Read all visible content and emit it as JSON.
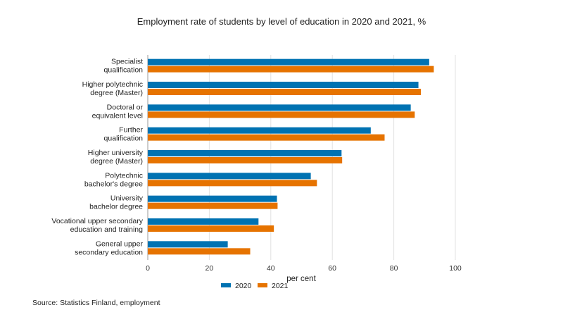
{
  "chart_data": {
    "type": "bar",
    "orientation": "horizontal",
    "title": "Employment rate of students by level of education in 2020 and 2021, %",
    "xlabel": "per cent",
    "ylabel": "",
    "xlim": [
      0,
      100
    ],
    "x_ticks": [
      "0",
      "20",
      "40",
      "60",
      "80",
      "100"
    ],
    "grid": true,
    "legend_position": "bottom",
    "categories": [
      [
        "Specialist",
        "qualification"
      ],
      [
        "Higher polytechnic",
        "degree (Master)"
      ],
      [
        "Doctoral or",
        "equivalent level"
      ],
      [
        "Further",
        "qualification"
      ],
      [
        "Higher university",
        "degree (Master)"
      ],
      [
        "Polytechnic",
        "bachelor's degree"
      ],
      [
        "University",
        "bachelor degree"
      ],
      [
        "Vocational upper secondary",
        "education and training"
      ],
      [
        "General upper",
        "secondary education"
      ]
    ],
    "series": [
      {
        "name": "2020",
        "color": "#0072b2",
        "values": [
          91.5,
          88,
          85.5,
          72.5,
          63,
          53,
          42,
          36,
          26
        ]
      },
      {
        "name": "2021",
        "color": "#e67300",
        "values": [
          93,
          88.8,
          86.8,
          77,
          63.2,
          55,
          42.2,
          41,
          33.3
        ]
      }
    ],
    "source": "Source: Statistics Finland, employment"
  }
}
